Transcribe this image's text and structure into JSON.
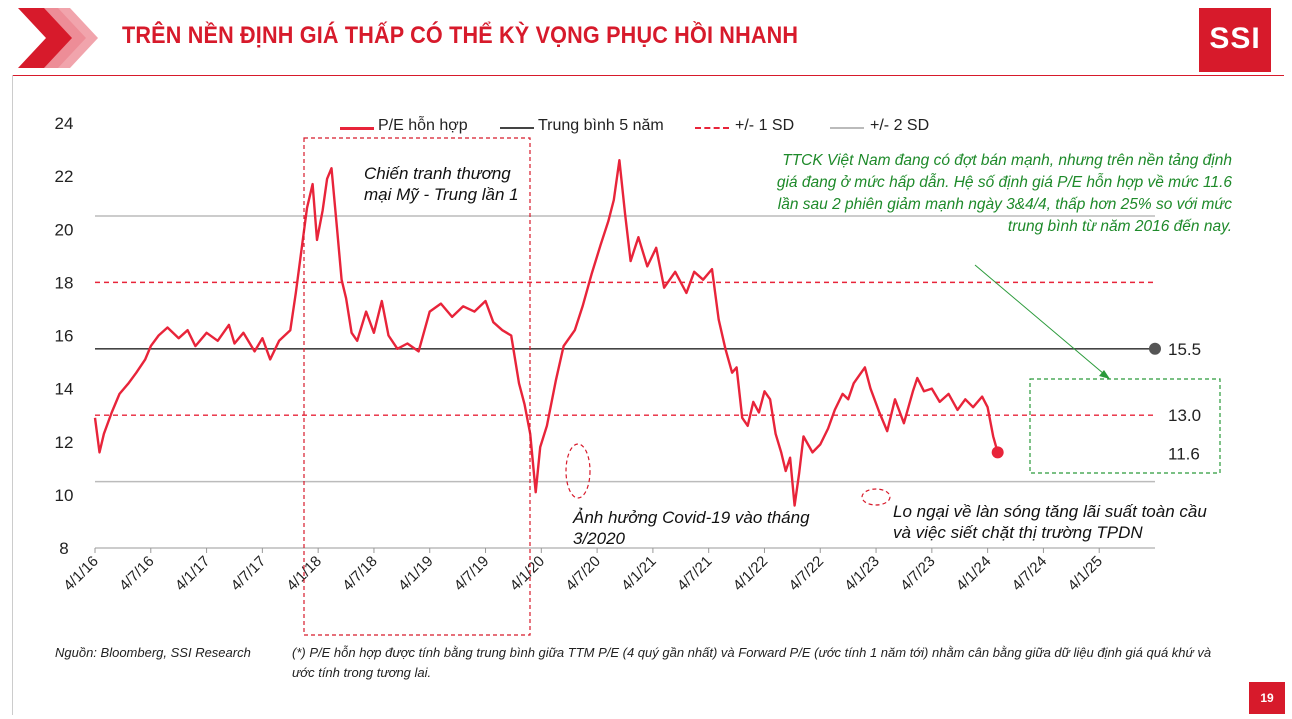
{
  "header": {
    "title": "TRÊN NỀN ĐỊNH GIÁ THẤP CÓ THỂ KỲ VỌNG PHỤC HỒI NHANH",
    "logo": "SSI"
  },
  "colors": {
    "brand": "#d71a2b",
    "pe_line": "#e8243a",
    "mean_line": "#444444",
    "sd1_line": "#e8243a",
    "sd2_line": "#bbbbbb",
    "green_note": "#1e8a2a"
  },
  "chart_data": {
    "type": "line",
    "ylim": [
      8,
      24
    ],
    "yticks": [
      "24",
      "22",
      "20",
      "18",
      "16",
      "14",
      "12",
      "10",
      "8"
    ],
    "x_tick_labels": [
      "4/1/16",
      "4/7/16",
      "4/1/17",
      "4/7/17",
      "4/1/18",
      "4/7/18",
      "4/1/19",
      "4/7/19",
      "4/1/20",
      "4/7/20",
      "4/1/21",
      "4/7/21",
      "4/1/22",
      "4/7/22",
      "4/1/23",
      "4/7/23",
      "4/1/24",
      "4/7/24",
      "4/1/25"
    ],
    "x_tick_values": [
      2016.25,
      2016.75,
      2017.25,
      2017.75,
      2018.25,
      2018.75,
      2019.25,
      2019.75,
      2020.25,
      2020.75,
      2021.25,
      2021.75,
      2022.25,
      2022.75,
      2023.25,
      2023.75,
      2024.25,
      2024.75,
      2025.25
    ],
    "xlim": [
      2016.25,
      2025.75
    ],
    "legend": [
      "P/E hỗn hợp",
      "Trung bình 5 năm",
      "+/- 1 SD",
      "+/- 2 SD"
    ],
    "reference_lines": [
      {
        "name": "Trung bình 5 năm",
        "value": 15.5,
        "label": "15.5"
      },
      {
        "name": "+/- 1 SD",
        "value": 18.0,
        "label": ""
      },
      {
        "name": "+/- 1 SD",
        "value": 13.0,
        "label": "13.0"
      },
      {
        "name": "+/- 2 SD",
        "value": 20.5,
        "label": ""
      },
      {
        "name": "+/- 2 SD",
        "value": 10.5,
        "label": ""
      }
    ],
    "last_point_label": "11.6",
    "series": [
      {
        "name": "P/E hỗn hợp",
        "points": [
          [
            2016.25,
            12.9
          ],
          [
            2016.29,
            11.6
          ],
          [
            2016.33,
            12.3
          ],
          [
            2016.4,
            13.1
          ],
          [
            2016.47,
            13.8
          ],
          [
            2016.55,
            14.2
          ],
          [
            2016.62,
            14.6
          ],
          [
            2016.7,
            15.1
          ],
          [
            2016.75,
            15.6
          ],
          [
            2016.82,
            16.0
          ],
          [
            2016.9,
            16.3
          ],
          [
            2017.0,
            15.9
          ],
          [
            2017.08,
            16.2
          ],
          [
            2017.15,
            15.6
          ],
          [
            2017.25,
            16.1
          ],
          [
            2017.35,
            15.8
          ],
          [
            2017.45,
            16.4
          ],
          [
            2017.5,
            15.7
          ],
          [
            2017.58,
            16.1
          ],
          [
            2017.68,
            15.4
          ],
          [
            2017.75,
            15.9
          ],
          [
            2017.82,
            15.1
          ],
          [
            2017.9,
            15.8
          ],
          [
            2018.0,
            16.2
          ],
          [
            2018.05,
            17.6
          ],
          [
            2018.1,
            19.2
          ],
          [
            2018.15,
            20.8
          ],
          [
            2018.2,
            21.7
          ],
          [
            2018.24,
            19.6
          ],
          [
            2018.29,
            20.7
          ],
          [
            2018.33,
            21.9
          ],
          [
            2018.37,
            22.3
          ],
          [
            2018.42,
            20.0
          ],
          [
            2018.46,
            18.1
          ],
          [
            2018.5,
            17.4
          ],
          [
            2018.55,
            16.1
          ],
          [
            2018.6,
            15.8
          ],
          [
            2018.68,
            16.9
          ],
          [
            2018.75,
            16.1
          ],
          [
            2018.82,
            17.3
          ],
          [
            2018.88,
            16.0
          ],
          [
            2018.96,
            15.5
          ],
          [
            2019.05,
            15.7
          ],
          [
            2019.15,
            15.4
          ],
          [
            2019.25,
            16.9
          ],
          [
            2019.35,
            17.2
          ],
          [
            2019.45,
            16.7
          ],
          [
            2019.55,
            17.1
          ],
          [
            2019.65,
            16.9
          ],
          [
            2019.75,
            17.3
          ],
          [
            2019.82,
            16.5
          ],
          [
            2019.9,
            16.2
          ],
          [
            2019.98,
            16.0
          ],
          [
            2020.05,
            14.2
          ],
          [
            2020.1,
            13.4
          ],
          [
            2020.15,
            12.3
          ],
          [
            2020.2,
            10.1
          ],
          [
            2020.24,
            11.8
          ],
          [
            2020.3,
            12.6
          ],
          [
            2020.38,
            14.3
          ],
          [
            2020.45,
            15.6
          ],
          [
            2020.55,
            16.2
          ],
          [
            2020.62,
            17.1
          ],
          [
            2020.7,
            18.3
          ],
          [
            2020.78,
            19.4
          ],
          [
            2020.85,
            20.3
          ],
          [
            2020.9,
            21.1
          ],
          [
            2020.95,
            22.6
          ],
          [
            2021.0,
            20.6
          ],
          [
            2021.05,
            18.8
          ],
          [
            2021.12,
            19.7
          ],
          [
            2021.2,
            18.6
          ],
          [
            2021.28,
            19.3
          ],
          [
            2021.35,
            17.8
          ],
          [
            2021.45,
            18.4
          ],
          [
            2021.55,
            17.6
          ],
          [
            2021.62,
            18.4
          ],
          [
            2021.7,
            18.1
          ],
          [
            2021.78,
            18.5
          ],
          [
            2021.84,
            16.6
          ],
          [
            2021.9,
            15.5
          ],
          [
            2021.96,
            14.6
          ],
          [
            2022.0,
            14.8
          ],
          [
            2022.05,
            12.9
          ],
          [
            2022.1,
            12.6
          ],
          [
            2022.15,
            13.5
          ],
          [
            2022.2,
            13.1
          ],
          [
            2022.25,
            13.9
          ],
          [
            2022.3,
            13.6
          ],
          [
            2022.35,
            12.3
          ],
          [
            2022.4,
            11.6
          ],
          [
            2022.44,
            10.9
          ],
          [
            2022.48,
            11.4
          ],
          [
            2022.52,
            9.6
          ],
          [
            2022.56,
            10.8
          ],
          [
            2022.6,
            12.2
          ],
          [
            2022.68,
            11.6
          ],
          [
            2022.75,
            11.9
          ],
          [
            2022.82,
            12.5
          ],
          [
            2022.88,
            13.2
          ],
          [
            2022.95,
            13.8
          ],
          [
            2023.0,
            13.6
          ],
          [
            2023.05,
            14.2
          ],
          [
            2023.1,
            14.5
          ],
          [
            2023.15,
            14.8
          ],
          [
            2023.2,
            14.0
          ],
          [
            2023.28,
            13.1
          ],
          [
            2023.35,
            12.4
          ],
          [
            2023.42,
            13.6
          ],
          [
            2023.5,
            12.7
          ],
          [
            2023.58,
            13.9
          ],
          [
            2023.62,
            14.4
          ],
          [
            2023.68,
            13.9
          ],
          [
            2023.75,
            14.0
          ],
          [
            2023.82,
            13.5
          ],
          [
            2023.9,
            13.8
          ],
          [
            2023.98,
            13.2
          ],
          [
            2024.05,
            13.6
          ],
          [
            2024.12,
            13.3
          ],
          [
            2024.2,
            13.7
          ],
          [
            2024.25,
            13.3
          ],
          [
            2024.3,
            12.2
          ],
          [
            2024.34,
            11.6
          ]
        ]
      }
    ],
    "annotations": [
      "Chiến tranh thương mại Mỹ - Trung lần 1",
      "Ảnh hưởng Covid-19 vào tháng 3/2020",
      "Lo ngại về làn sóng tăng lãi suất toàn cầu và việc siết chặt thị trường TPDN"
    ]
  },
  "texts": {
    "ann_trade_war_1": "Chiến tranh thương",
    "ann_trade_war_2": "mại Mỹ - Trung lần 1",
    "ann_covid_1": "Ảnh hưởng Covid-19 vào tháng",
    "ann_covid_2": "3/2020",
    "ann_rates_1": "Lo ngại về làn sóng tăng lãi suất toàn cầu",
    "ann_rates_2": "và việc siết chặt thị trường TPDN",
    "green_note": "TTCK Việt Nam đang có đợt bán mạnh, nhưng trên nền tảng định giá đang ở mức hấp dẫn. Hệ số định giá P/E hỗn hợp về mức 11.6 lần sau 2 phiên giảm mạnh ngày 3&4/4, thấp hơn 25% so với mức trung bình từ năm 2016 đến nay."
  },
  "footer": {
    "source": "Nguồn: Bloomberg, SSI Research",
    "footnote": "(*) P/E hỗn hợp được tính bằng trung bình giữa TTM P/E (4 quý gần nhất) và Forward P/E (ước tính 1 năm tới) nhằm cân bằng giữa dữ liệu định giá quá khứ và ước tính trong tương lai.",
    "page_number": "19"
  }
}
